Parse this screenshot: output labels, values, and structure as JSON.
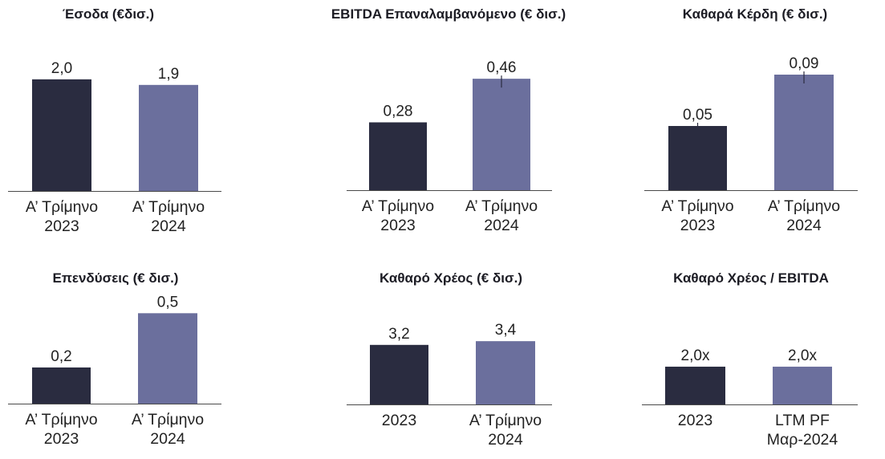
{
  "colors": {
    "bar_dark": "#2a2c40",
    "bar_light": "#6b6f9d",
    "axis_line": "#4a4a4a",
    "label_text": "#222222",
    "title_text": "#1c1c24"
  },
  "chart_data": [
    {
      "type": "bar",
      "title": "Έσοδα (€δισ.)",
      "categories": [
        [
          "Α’ Τρίμηνο",
          "2023"
        ],
        [
          "Α’ Τρίμηνο",
          "2024"
        ]
      ],
      "values": [
        2.0,
        1.9
      ],
      "value_labels": [
        "2,0",
        "1,9"
      ],
      "ylim": [
        0,
        2.3
      ],
      "grid": false
    },
    {
      "type": "bar",
      "title": "EBITDA Επαναλαμβανόμενο (€ δισ.)",
      "categories": [
        [
          "Α’ Τρίμηνο",
          "2023"
        ],
        [
          "Α’ Τρίμηνο",
          "2024"
        ]
      ],
      "values": [
        0.28,
        0.46
      ],
      "value_labels": [
        "0,28",
        "0,46"
      ],
      "ylim": [
        0,
        0.53
      ],
      "grid": false
    },
    {
      "type": "bar",
      "title": "Καθαρά Κέρδη (€ δισ.)",
      "categories": [
        [
          "Α’ Τρίμηνο",
          "2023"
        ],
        [
          "Α’ Τρίμηνο",
          "2024"
        ]
      ],
      "values": [
        0.05,
        0.09
      ],
      "value_labels": [
        "0,05",
        "0,09"
      ],
      "ylim": [
        0,
        0.1
      ],
      "grid": false
    },
    {
      "type": "bar",
      "title": "Επενδύσεις (€ δισ.)",
      "categories": [
        [
          "Α’ Τρίμηνο",
          "2023"
        ],
        [
          "Α’ Τρίμηνο",
          "2024"
        ]
      ],
      "values": [
        0.2,
        0.5
      ],
      "value_labels": [
        "0,2",
        "0,5"
      ],
      "ylim": [
        0,
        0.71
      ],
      "grid": false
    },
    {
      "type": "bar",
      "title": "Καθαρό Χρέος (€ δισ.)",
      "categories": [
        [
          "2023"
        ],
        [
          "Α’ Τρίμηνο",
          "2024"
        ]
      ],
      "values": [
        3.2,
        3.4
      ],
      "value_labels": [
        "3,2",
        "3,4"
      ],
      "ylim": [
        0,
        6.9
      ],
      "grid": false
    },
    {
      "type": "bar",
      "title": "Καθαρό Χρέος / EBITDA",
      "categories": [
        [
          "2023"
        ],
        [
          "LTM PF",
          "Μαρ-2024"
        ]
      ],
      "values": [
        2.0,
        2.0
      ],
      "value_labels": [
        "2,0x",
        "2,0x"
      ],
      "ylim": [
        0,
        6.8
      ],
      "grid": false
    }
  ]
}
